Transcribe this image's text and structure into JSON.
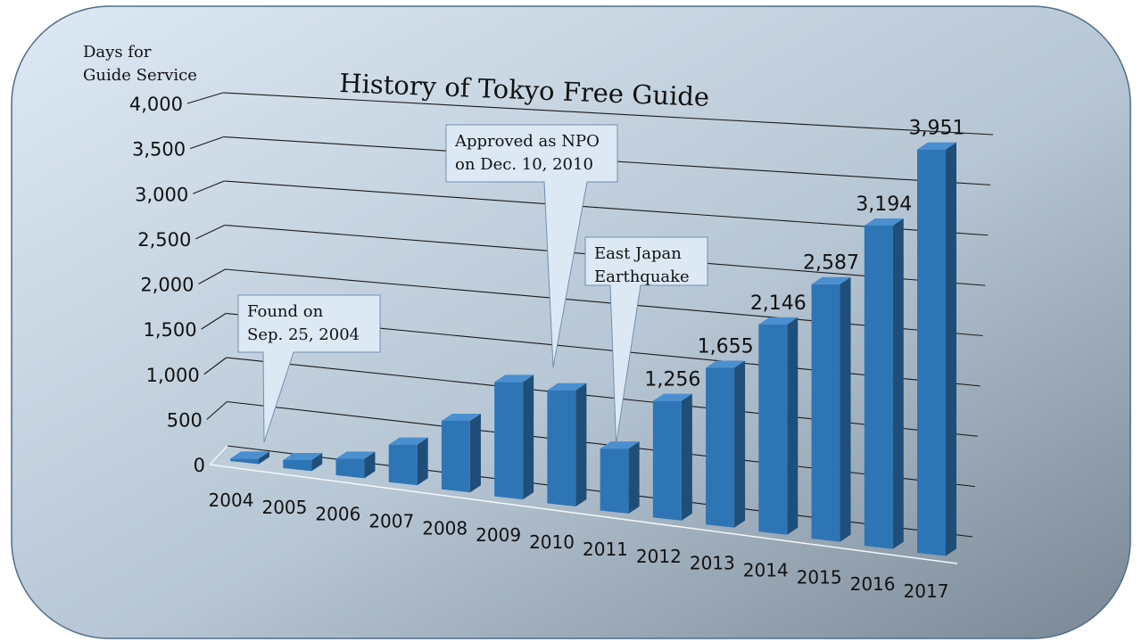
{
  "chart_data": {
    "type": "bar",
    "title": "History of Tokyo Free Guide",
    "ylabel_lines": [
      "Days for",
      "Guide Service"
    ],
    "xlabel": "",
    "ylim": [
      0,
      4000
    ],
    "yticks": [
      0,
      500,
      1000,
      1500,
      2000,
      2500,
      3000,
      3500,
      4000
    ],
    "ytick_labels": [
      "0",
      "500",
      "1,000",
      "1,500",
      "2,000",
      "2,500",
      "3,000",
      "3,500",
      "4,000"
    ],
    "grid": true,
    "categories": [
      "2004",
      "2005",
      "2006",
      "2007",
      "2008",
      "2009",
      "2010",
      "2011",
      "2012",
      "2013",
      "2014",
      "2015",
      "2016",
      "2017"
    ],
    "values": [
      30,
      100,
      200,
      450,
      800,
      1310,
      1270,
      680,
      1256,
      1655,
      2146,
      2587,
      3194,
      3951
    ],
    "data_labels": [
      "",
      "",
      "",
      "",
      "",
      "",
      "",
      "",
      "1,256",
      "1,655",
      "2,146",
      "2,587",
      "3,194",
      "3,951"
    ],
    "annotations": [
      {
        "lines": [
          "Found on",
          "Sep. 25, 2004"
        ],
        "category": "2004"
      },
      {
        "lines": [
          "Approved as NPO",
          "on Dec. 10, 2010"
        ],
        "category": "2010"
      },
      {
        "lines": [
          "East Japan",
          "Earthquake"
        ],
        "category": "2011"
      }
    ],
    "colors": {
      "bar_front": "#2e75b6",
      "bar_side": "#1f4e79",
      "bar_top": "#4a8fd0",
      "grid": "#1a1a1a",
      "callout_fill": "#dce9f5",
      "callout_stroke": "#6f8fb0"
    }
  }
}
